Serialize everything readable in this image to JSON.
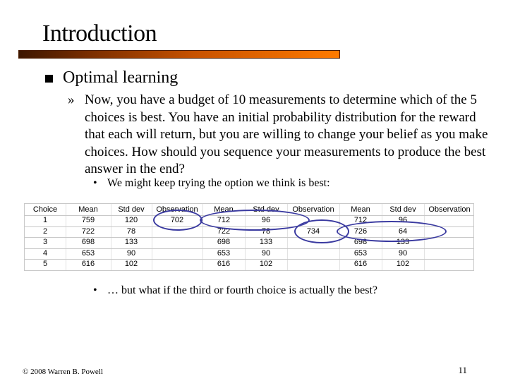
{
  "slide": {
    "title": "Introduction",
    "bullet": "Optimal learning",
    "sub_marker": "»",
    "paragraph": "Now, you have a budget of 10 measurements to determine which of the 5 choices is best.  You have an initial probability distribution for the reward that each will return, but you are willing to change your belief as you make choices.  How should you sequence your measurements to produce the best answer in the end?",
    "point1": "We might keep trying the option we think is best:",
    "point2": "… but what if the third or fourth choice is actually the best?",
    "point_marker": "•",
    "footer_left": "© 2008 Warren B. Powell",
    "page_number": "11"
  },
  "table": {
    "headers": [
      "Choice",
      "Mean",
      "Std dev",
      "Observation",
      "Mean",
      "Std dev",
      "Observation",
      "Mean",
      "Std dev",
      "Observation"
    ],
    "rows": [
      [
        "1",
        "759",
        "120",
        "702",
        "712",
        "96",
        "",
        "712",
        "96",
        ""
      ],
      [
        "2",
        "722",
        "78",
        "",
        "722",
        "78",
        "734",
        "726",
        "64",
        ""
      ],
      [
        "3",
        "698",
        "133",
        "",
        "698",
        "133",
        "",
        "698",
        "133",
        ""
      ],
      [
        "4",
        "653",
        "90",
        "",
        "653",
        "90",
        "",
        "653",
        "90",
        ""
      ],
      [
        "5",
        "616",
        "102",
        "",
        "616",
        "102",
        "",
        "616",
        "102",
        ""
      ]
    ]
  },
  "annotation_color": "#3a3aa0",
  "title_rule_colors": [
    "#3d1600",
    "#ff7a00"
  ]
}
